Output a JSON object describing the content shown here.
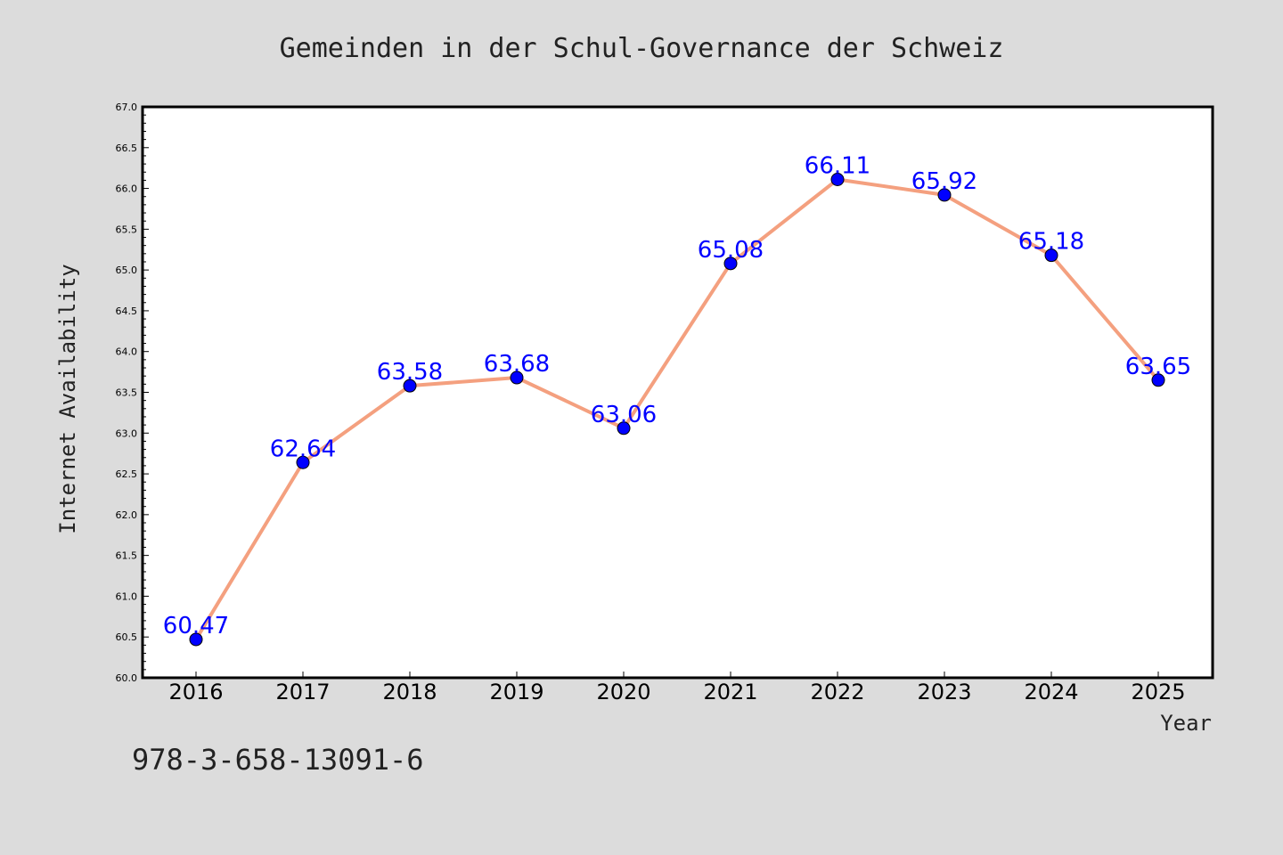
{
  "chart_data": {
    "type": "line",
    "title": "Gemeinden in der Schul-Governance der Schweiz",
    "xlabel": "Year",
    "ylabel": "Internet Availability",
    "categories": [
      "2016",
      "2017",
      "2018",
      "2019",
      "2020",
      "2021",
      "2022",
      "2023",
      "2024",
      "2025"
    ],
    "values": [
      60.47,
      62.64,
      63.58,
      63.68,
      63.06,
      65.08,
      66.11,
      65.92,
      65.18,
      63.65
    ],
    "data_labels": [
      "60.47",
      "62.64",
      "63.58",
      "63.68",
      "63.06",
      "65.08",
      "66.11",
      "65.92",
      "65.18",
      "63.65"
    ],
    "ylim": [
      60.0,
      67.0
    ],
    "yticks": [
      "60.0",
      "60.5",
      "61.0",
      "61.5",
      "62.0",
      "62.5",
      "63.0",
      "63.5",
      "64.0",
      "64.5",
      "65.0",
      "65.5",
      "66.0",
      "66.5",
      "67.0"
    ],
    "grid": false,
    "legend": "none",
    "line_color": "#f4a07f",
    "marker_color": "#0000ff",
    "label_color": "#0000ff"
  },
  "footer": {
    "isbn": "978-3-658-13091-6"
  },
  "colors": {
    "background": "#dcdcdc",
    "plot_background": "#ffffff"
  }
}
